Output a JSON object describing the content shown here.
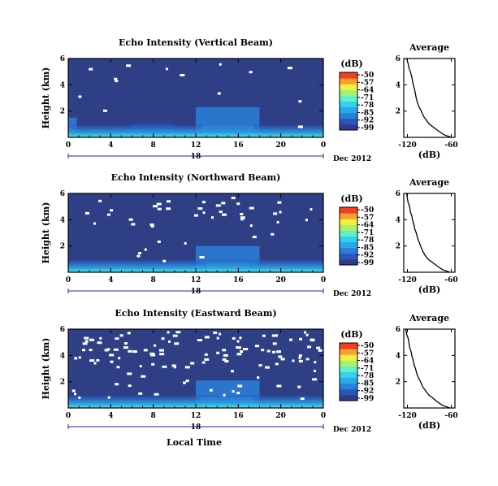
{
  "colors": {
    "background_fill": "#2f3f86",
    "missing": "#ffffff",
    "colormap": [
      "#2f3a8a",
      "#2c55b8",
      "#2a7fd8",
      "#2aa9e8",
      "#35d0f0",
      "#5ff0c8",
      "#a8f070",
      "#f0f040",
      "#f8a030",
      "#f04020"
    ]
  },
  "colorbar": {
    "label": "(dB)",
    "ticks": [
      "-50",
      "-57",
      "-64",
      "-71",
      "-78",
      "-85",
      "-92",
      "-99"
    ]
  },
  "date_label": "Dec 2012",
  "day_label": "18",
  "xlabel": "Local Time",
  "chart_data": [
    {
      "type": "heatmap",
      "title": "Echo Intensity (Vertical Beam)",
      "ylabel": "Height (km)",
      "xlabel": "Local Time",
      "x_ticks": [
        "0",
        "4",
        "8",
        "12",
        "16",
        "20",
        "0"
      ],
      "xlim": [
        0,
        24
      ],
      "y_ticks": [
        "6",
        "4",
        "2"
      ],
      "ylim": [
        0,
        6
      ],
      "z_unit": "dB",
      "z_range": [
        -99,
        -50
      ],
      "features": [
        {
          "t0": 0,
          "t1": 0.8,
          "h0": 0,
          "h1": 1.5,
          "level": -88
        },
        {
          "t0": 4,
          "t1": 12,
          "h0": 0,
          "h1": 0.5,
          "level": -91
        },
        {
          "t0": 6,
          "t1": 10,
          "h0": 0,
          "h1": 1.0,
          "level": -90
        },
        {
          "t0": 12,
          "t1": 18,
          "h0": 0,
          "h1": 2.3,
          "level": -86
        },
        {
          "t0": 12.5,
          "t1": 17.5,
          "h0": 0,
          "h1": 0.9,
          "level": -80
        },
        {
          "t0": 18,
          "t1": 24,
          "h0": 0,
          "h1": 0.4,
          "level": -92
        }
      ],
      "average": {
        "title": "Average",
        "xlabel": "(dB)",
        "x_ticks": [
          "-120",
          "-60"
        ],
        "xlim": [
          -125,
          -55
        ],
        "y_ticks": [
          "6",
          "4",
          "2"
        ],
        "ylim": [
          0,
          6
        ],
        "height_km": [
          0.0,
          0.2,
          0.5,
          0.8,
          1.0,
          1.3,
          1.6,
          2.0,
          2.3,
          2.6,
          3.0,
          3.3,
          3.6,
          4.0,
          4.3,
          4.6,
          5.0,
          5.3,
          5.6,
          6.0
        ],
        "db": [
          -60,
          -70,
          -78,
          -85,
          -90,
          -94,
          -98,
          -101,
          -104,
          -106,
          -108,
          -109,
          -110,
          -112,
          -113,
          -114,
          -116,
          -118,
          -119,
          -121
        ]
      }
    },
    {
      "type": "heatmap",
      "title": "Echo Intensity (Northward Beam)",
      "ylabel": "Height (km)",
      "xlabel": "Local Time",
      "x_ticks": [
        "0",
        "4",
        "8",
        "12",
        "16",
        "20",
        "0"
      ],
      "xlim": [
        0,
        24
      ],
      "y_ticks": [
        "6",
        "4",
        "2"
      ],
      "ylim": [
        0,
        6
      ],
      "z_unit": "dB",
      "z_range": [
        -99,
        -50
      ],
      "features": [
        {
          "t0": 0,
          "t1": 24,
          "h0": 0,
          "h1": 0.3,
          "level": -90
        },
        {
          "t0": 12,
          "t1": 18,
          "h0": 0,
          "h1": 2.0,
          "level": -88
        },
        {
          "t0": 13,
          "t1": 17,
          "h0": 0,
          "h1": 0.8,
          "level": -80
        }
      ],
      "average": {
        "title": "Average",
        "xlabel": "(dB)",
        "x_ticks": [
          "-120",
          "-60"
        ],
        "xlim": [
          -125,
          -55
        ],
        "y_ticks": [
          "6",
          "4",
          "2"
        ],
        "ylim": [
          0,
          6
        ],
        "height_km": [
          0.0,
          0.2,
          0.5,
          0.8,
          1.0,
          1.3,
          1.6,
          2.0,
          2.3,
          2.6,
          3.0,
          3.3,
          3.6,
          4.0,
          4.3,
          4.6,
          5.0,
          5.3,
          5.6,
          6.0
        ],
        "db": [
          -62,
          -72,
          -80,
          -87,
          -92,
          -96,
          -99,
          -102,
          -104,
          -106,
          -108,
          -110,
          -111,
          -113,
          -114,
          -116,
          -117,
          -119,
          -120,
          -121
        ]
      }
    },
    {
      "type": "heatmap",
      "title": "Echo Intensity (Eastward Beam)",
      "ylabel": "Height (km)",
      "xlabel": "Local Time",
      "x_ticks": [
        "0",
        "4",
        "8",
        "12",
        "16",
        "20",
        "0"
      ],
      "xlim": [
        0,
        24
      ],
      "y_ticks": [
        "6",
        "4",
        "2"
      ],
      "ylim": [
        0,
        6
      ],
      "z_unit": "dB",
      "z_range": [
        -99,
        -50
      ],
      "features": [
        {
          "t0": 0,
          "t1": 24,
          "h0": 0,
          "h1": 0.35,
          "level": -90
        },
        {
          "t0": 12,
          "t1": 18,
          "h0": 0,
          "h1": 2.1,
          "level": -88
        },
        {
          "t0": 12.5,
          "t1": 17.5,
          "h0": 0,
          "h1": 0.8,
          "level": -80
        }
      ],
      "average": {
        "title": "Average",
        "xlabel": "(dB)",
        "x_ticks": [
          "-120",
          "-60"
        ],
        "xlim": [
          -125,
          -55
        ],
        "y_ticks": [
          "6",
          "4",
          "2"
        ],
        "ylim": [
          0,
          6
        ],
        "height_km": [
          0.0,
          0.2,
          0.5,
          0.8,
          1.0,
          1.3,
          1.6,
          2.0,
          2.3,
          2.6,
          3.0,
          3.3,
          3.6,
          4.0,
          4.3,
          4.6,
          5.0,
          5.3,
          5.6,
          6.0
        ],
        "db": [
          -62,
          -72,
          -80,
          -86,
          -91,
          -95,
          -99,
          -102,
          -105,
          -107,
          -109,
          -111,
          -112,
          -114,
          -115,
          -117,
          -118,
          -119,
          -121,
          -122
        ]
      }
    }
  ]
}
